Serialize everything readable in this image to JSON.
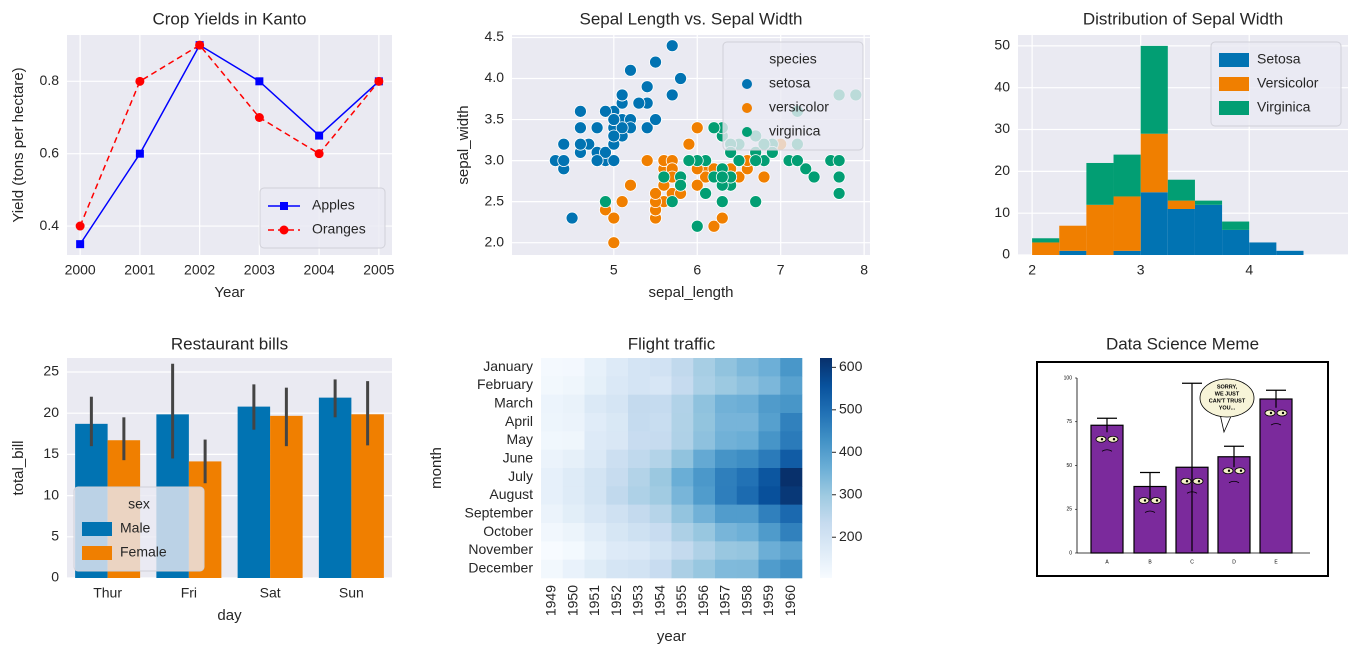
{
  "chart_data": [
    {
      "type": "line",
      "title": "Crop Yields in Kanto",
      "xlabel": "Year",
      "ylabel": "Yield (tons per hectare)",
      "x": [
        2000,
        2001,
        2002,
        2003,
        2004,
        2005
      ],
      "xlim": [
        1999.78,
        2005.22
      ],
      "xticks": [
        2000,
        2001,
        2002,
        2003,
        2004,
        2005
      ],
      "ylim": [
        0.32,
        0.928
      ],
      "yticks": [
        0.4,
        0.6,
        0.8
      ],
      "grid": true,
      "legend": "lower right",
      "series": [
        {
          "name": "Apples",
          "color": "#0000ff",
          "marker": "square",
          "linestyle": "solid",
          "values": [
            0.35,
            0.6,
            0.9,
            0.8,
            0.65,
            0.8
          ]
        },
        {
          "name": "Oranges",
          "color": "#ff0000",
          "marker": "circle",
          "linestyle": "dashed",
          "values": [
            0.4,
            0.8,
            0.9,
            0.7,
            0.6,
            0.8
          ]
        }
      ]
    },
    {
      "type": "scatter",
      "title": "Sepal Length vs. Sepal Width",
      "xlabel": "sepal_length",
      "ylabel": "sepal_width",
      "xlim": [
        3.78,
        8.07
      ],
      "xticks": [
        5,
        6,
        7,
        8
      ],
      "ylim": [
        1.85,
        4.53
      ],
      "yticks": [
        {
          "value": 2,
          "label": "2.0"
        },
        2.5,
        {
          "value": 3,
          "label": "3.0"
        },
        3.5,
        {
          "value": 4,
          "label": "4.0"
        },
        4.5
      ],
      "grid": true,
      "legend": "upper right",
      "legend_title": "species",
      "series": [
        {
          "name": "setosa",
          "color": "#0173b2",
          "x": [
            5.1,
            4.9,
            4.7,
            4.6,
            5.0,
            5.4,
            4.6,
            5.0,
            4.4,
            4.9,
            5.4,
            4.8,
            4.8,
            4.3,
            5.8,
            5.7,
            5.4,
            5.1,
            5.7,
            5.1,
            5.4,
            5.1,
            4.6,
            5.1,
            4.8,
            5.0,
            5.0,
            5.2,
            5.2,
            4.7,
            4.8,
            5.4,
            5.2,
            5.5,
            4.9,
            5.0,
            5.5,
            4.9,
            4.4,
            5.1,
            5.0,
            4.5,
            4.4,
            5.0,
            5.1,
            4.8,
            5.1,
            4.6,
            5.3,
            5.0
          ],
          "values": [
            3.5,
            3.0,
            3.2,
            3.1,
            3.6,
            3.9,
            3.4,
            3.4,
            2.9,
            3.1,
            3.7,
            3.4,
            3.0,
            3.0,
            4.0,
            4.4,
            3.9,
            3.5,
            3.8,
            3.8,
            3.4,
            3.7,
            3.6,
            3.3,
            3.4,
            3.0,
            3.4,
            3.5,
            3.4,
            3.2,
            3.1,
            3.4,
            4.1,
            4.2,
            3.1,
            3.2,
            3.5,
            3.6,
            3.0,
            3.4,
            3.5,
            2.3,
            3.2,
            3.5,
            3.8,
            3.0,
            3.8,
            3.2,
            3.7,
            3.3
          ]
        },
        {
          "name": "versicolor",
          "color": "#f07f00",
          "x": [
            7.0,
            6.4,
            6.9,
            5.5,
            6.5,
            5.7,
            6.3,
            4.9,
            6.6,
            5.2,
            5.0,
            5.9,
            6.0,
            6.1,
            5.6,
            6.7,
            5.6,
            5.8,
            6.2,
            5.6,
            5.9,
            6.1,
            6.3,
            6.1,
            6.4,
            6.6,
            6.8,
            6.7,
            6.0,
            5.7,
            5.5,
            5.5,
            5.8,
            6.0,
            5.4,
            6.0,
            6.7,
            6.3,
            5.6,
            5.5,
            5.5,
            6.1,
            5.8,
            5.0,
            5.6,
            5.7,
            5.7,
            6.2,
            5.1,
            5.7
          ],
          "values": [
            3.2,
            3.2,
            3.1,
            2.3,
            2.8,
            2.8,
            3.3,
            2.4,
            2.9,
            2.7,
            2.0,
            3.0,
            2.2,
            2.9,
            2.9,
            3.1,
            3.0,
            2.7,
            2.2,
            2.5,
            3.2,
            2.8,
            2.5,
            2.8,
            2.9,
            3.0,
            2.8,
            3.0,
            2.9,
            2.6,
            2.4,
            2.4,
            2.7,
            2.7,
            3.0,
            3.4,
            3.1,
            2.3,
            3.0,
            2.5,
            2.6,
            3.0,
            2.6,
            2.3,
            2.7,
            3.0,
            2.9,
            2.9,
            2.5,
            2.8
          ]
        },
        {
          "name": "virginica",
          "color": "#029e73",
          "x": [
            6.3,
            5.8,
            7.1,
            6.3,
            6.5,
            7.6,
            4.9,
            7.3,
            6.7,
            7.2,
            6.5,
            6.4,
            6.8,
            5.7,
            5.8,
            6.4,
            6.5,
            7.7,
            7.7,
            6.0,
            6.9,
            5.6,
            7.7,
            6.3,
            6.7,
            7.2,
            6.2,
            6.1,
            6.4,
            7.2,
            7.4,
            7.9,
            6.4,
            6.3,
            6.1,
            7.7,
            6.3,
            6.4,
            6.0,
            6.9,
            6.7,
            6.9,
            5.8,
            6.8,
            6.7,
            6.7,
            6.3,
            6.5,
            6.2,
            5.9
          ],
          "values": [
            3.3,
            2.7,
            3.0,
            2.9,
            3.0,
            3.0,
            2.5,
            2.9,
            2.5,
            3.6,
            3.2,
            2.7,
            3.0,
            2.5,
            2.8,
            3.2,
            3.0,
            3.8,
            2.6,
            2.2,
            3.2,
            2.8,
            2.8,
            2.7,
            3.3,
            3.2,
            2.8,
            3.0,
            2.8,
            3.0,
            2.8,
            3.8,
            2.8,
            2.8,
            2.6,
            3.0,
            3.4,
            3.1,
            3.0,
            3.1,
            3.1,
            3.1,
            2.7,
            3.2,
            3.3,
            3.0,
            2.5,
            3.0,
            3.4,
            3.0
          ]
        }
      ]
    },
    {
      "type": "histogram",
      "stacked": true,
      "title": "Distribution of Sepal Width",
      "bins": [
        2.0,
        2.25,
        2.5,
        2.75,
        3.0,
        3.25,
        3.5,
        3.75,
        4.0,
        4.25,
        4.5
      ],
      "xlim": [
        1.87,
        4.91
      ],
      "xticks": [
        2,
        3,
        4
      ],
      "ylim": [
        0,
        52.6
      ],
      "yticks": [
        0,
        10,
        20,
        30,
        40,
        50
      ],
      "grid": true,
      "legend": "upper right",
      "series": [
        {
          "name": "Setosa",
          "color": "#0173b2",
          "values": [
            0,
            1,
            0,
            1,
            15,
            11,
            12,
            6,
            3,
            1
          ]
        },
        {
          "name": "Versicolor",
          "color": "#f07f00",
          "values": [
            3,
            6,
            12,
            13,
            14,
            2,
            0,
            0,
            0,
            0
          ]
        },
        {
          "name": "Virginica",
          "color": "#029e73",
          "values": [
            1,
            0,
            10,
            10,
            21,
            5,
            1,
            2,
            0,
            0
          ]
        }
      ]
    },
    {
      "type": "bar",
      "title": "Restaurant bills",
      "xlabel": "day",
      "ylabel": "total_bill",
      "categories": [
        "Thur",
        "Fri",
        "Sat",
        "Sun"
      ],
      "ylim": [
        0,
        26.7
      ],
      "yticks": [
        0,
        5,
        10,
        15,
        20,
        25
      ],
      "grid": true,
      "legend": "lower left",
      "legend_title": "sex",
      "series": [
        {
          "name": "Male",
          "color": "#0173b2",
          "values": [
            18.71,
            19.86,
            20.8,
            21.89
          ],
          "ci_low": [
            16.0,
            14.5,
            18.0,
            19.5
          ],
          "ci_high": [
            22.0,
            26.0,
            23.5,
            24.1
          ]
        },
        {
          "name": "Female",
          "color": "#f07f00",
          "values": [
            16.72,
            14.15,
            19.68,
            19.87
          ],
          "ci_low": [
            14.3,
            11.5,
            16.0,
            16.1
          ],
          "ci_high": [
            19.5,
            16.8,
            23.1,
            23.9
          ]
        }
      ]
    },
    {
      "type": "heatmap",
      "title": "Flight traffic",
      "xlabel": "year",
      "ylabel": "month",
      "x": [
        1949,
        1950,
        1951,
        1952,
        1953,
        1954,
        1955,
        1956,
        1957,
        1958,
        1959,
        1960
      ],
      "y": [
        "January",
        "February",
        "March",
        "April",
        "May",
        "June",
        "July",
        "August",
        "September",
        "October",
        "November",
        "December"
      ],
      "values": [
        [
          112,
          115,
          145,
          171,
          196,
          204,
          242,
          284,
          315,
          340,
          360,
          417
        ],
        [
          118,
          126,
          150,
          180,
          196,
          188,
          233,
          277,
          301,
          318,
          342,
          391
        ],
        [
          132,
          141,
          178,
          193,
          236,
          235,
          267,
          317,
          356,
          362,
          406,
          419
        ],
        [
          129,
          135,
          163,
          181,
          235,
          227,
          269,
          313,
          348,
          348,
          396,
          461
        ],
        [
          121,
          125,
          172,
          183,
          229,
          234,
          270,
          318,
          355,
          363,
          420,
          472
        ],
        [
          135,
          149,
          178,
          218,
          243,
          264,
          315,
          374,
          422,
          435,
          472,
          535
        ],
        [
          148,
          170,
          199,
          230,
          264,
          302,
          364,
          413,
          465,
          491,
          548,
          622
        ],
        [
          148,
          170,
          199,
          242,
          272,
          293,
          347,
          405,
          467,
          505,
          559,
          606
        ],
        [
          136,
          158,
          184,
          209,
          237,
          259,
          312,
          355,
          404,
          404,
          463,
          508
        ],
        [
          119,
          133,
          162,
          191,
          211,
          229,
          274,
          306,
          347,
          359,
          407,
          461
        ],
        [
          104,
          114,
          146,
          172,
          180,
          203,
          237,
          271,
          305,
          310,
          362,
          390
        ],
        [
          118,
          140,
          166,
          194,
          201,
          229,
          278,
          306,
          336,
          337,
          405,
          432
        ]
      ],
      "clim": [
        104,
        622
      ],
      "cticks": [
        200,
        300,
        400,
        500,
        600
      ],
      "colormap": "Blues"
    },
    {
      "type": "image",
      "title": "Data Science Meme",
      "caption_lines": [
        "SORRY,",
        "WE JUST",
        "CAN'T TRUST",
        "YOU..."
      ],
      "categories": [
        "A",
        "B",
        "C",
        "D",
        "E"
      ],
      "values": [
        73,
        38,
        49,
        55,
        88
      ],
      "errors": [
        4,
        8,
        48,
        6,
        5
      ],
      "ylim": [
        0,
        100
      ],
      "yticks": [
        0,
        25,
        50,
        75,
        100
      ],
      "color": "#7b2a9c"
    }
  ]
}
